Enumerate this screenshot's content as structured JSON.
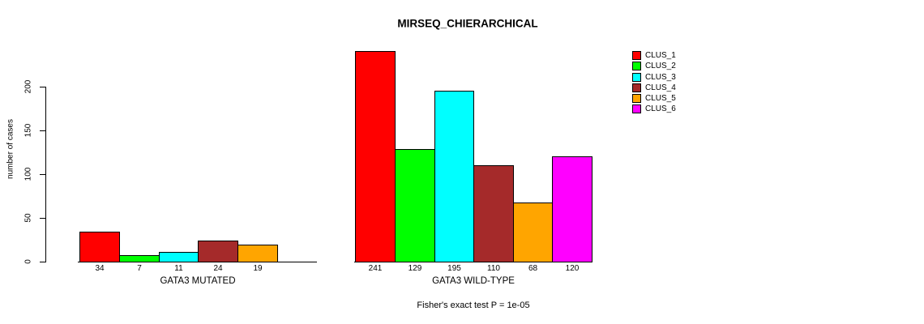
{
  "page": {
    "background": "#FFFFFF",
    "text_color": "#000000",
    "axis_color": "#000000"
  },
  "chart_data": {
    "type": "bar",
    "title": "MIRSEQ_CHIERARCHICAL",
    "ylabel": "number of cases",
    "xlabel": "",
    "yticks": [
      0,
      50,
      100,
      150,
      200
    ],
    "ylim": [
      0,
      250
    ],
    "grid": false,
    "legend_position": "right",
    "legend": [
      {
        "label": "CLUS_1",
        "color": "#FF0000"
      },
      {
        "label": "CLUS_2",
        "color": "#00FF00"
      },
      {
        "label": "CLUS_3",
        "color": "#00FFFF"
      },
      {
        "label": "CLUS_4",
        "color": "#A52A2A"
      },
      {
        "label": "CLUS_5",
        "color": "#FFA500"
      },
      {
        "label": "CLUS_6",
        "color": "#FF00FF"
      }
    ],
    "groups": [
      {
        "label": "GATA3 MUTATED",
        "values": [
          34,
          7,
          11,
          24,
          19,
          0
        ],
        "bar_labels": [
          "34",
          "7",
          "11",
          "24",
          "19",
          ""
        ]
      },
      {
        "label": "GATA3 WILD-TYPE",
        "values": [
          241,
          129,
          195,
          110,
          68,
          120
        ],
        "bar_labels": [
          "241",
          "129",
          "195",
          "110",
          "68",
          "120"
        ]
      }
    ],
    "annotation": "Fisher's exact test P = 1e-05"
  }
}
